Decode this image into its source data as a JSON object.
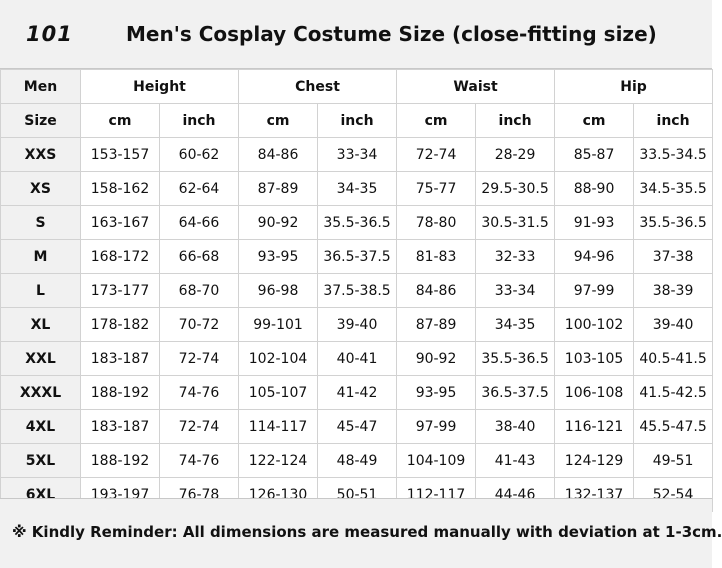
{
  "header": {
    "brand": "101",
    "title": "Men's Cosplay Costume Size (close-fitting size)"
  },
  "table": {
    "group_header": {
      "first": "Men",
      "groups": [
        "Height",
        "Chest",
        "Waist",
        "Hip"
      ]
    },
    "unit_header": {
      "first": "Size",
      "units": [
        "cm",
        "inch",
        "cm",
        "inch",
        "cm",
        "inch",
        "cm",
        "inch"
      ]
    },
    "rows": [
      {
        "size": "XXS",
        "values": [
          "153-157",
          "60-62",
          "84-86",
          "33-34",
          "72-74",
          "28-29",
          "85-87",
          "33.5-34.5"
        ]
      },
      {
        "size": "XS",
        "values": [
          "158-162",
          "62-64",
          "87-89",
          "34-35",
          "75-77",
          "29.5-30.5",
          "88-90",
          "34.5-35.5"
        ]
      },
      {
        "size": "S",
        "values": [
          "163-167",
          "64-66",
          "90-92",
          "35.5-36.5",
          "78-80",
          "30.5-31.5",
          "91-93",
          "35.5-36.5"
        ]
      },
      {
        "size": "M",
        "values": [
          "168-172",
          "66-68",
          "93-95",
          "36.5-37.5",
          "81-83",
          "32-33",
          "94-96",
          "37-38"
        ]
      },
      {
        "size": "L",
        "values": [
          "173-177",
          "68-70",
          "96-98",
          "37.5-38.5",
          "84-86",
          "33-34",
          "97-99",
          "38-39"
        ]
      },
      {
        "size": "XL",
        "values": [
          "178-182",
          "70-72",
          "99-101",
          "39-40",
          "87-89",
          "34-35",
          "100-102",
          "39-40"
        ]
      },
      {
        "size": "XXL",
        "values": [
          "183-187",
          "72-74",
          "102-104",
          "40-41",
          "90-92",
          "35.5-36.5",
          "103-105",
          "40.5-41.5"
        ]
      },
      {
        "size": "XXXL",
        "values": [
          "188-192",
          "74-76",
          "105-107",
          "41-42",
          "93-95",
          "36.5-37.5",
          "106-108",
          "41.5-42.5"
        ]
      },
      {
        "size": "4XL",
        "values": [
          "183-187",
          "72-74",
          "114-117",
          "45-47",
          "97-99",
          "38-40",
          "116-121",
          "45.5-47.5"
        ]
      },
      {
        "size": "5XL",
        "values": [
          "188-192",
          "74-76",
          "122-124",
          "48-49",
          "104-109",
          "41-43",
          "124-129",
          "49-51"
        ]
      },
      {
        "size": "6XL",
        "values": [
          "193-197",
          "76-78",
          "126-130",
          "50-51",
          "112-117",
          "44-46",
          "132-137",
          "52-54"
        ]
      }
    ]
  },
  "footer": {
    "reminder": "※ Kindly Reminder: All dimensions are measured manually with deviation at 1-3cm."
  },
  "colors": {
    "header_bg": "#f1f1f1",
    "grid_line": "#d2d2d2",
    "text": "#111111"
  }
}
